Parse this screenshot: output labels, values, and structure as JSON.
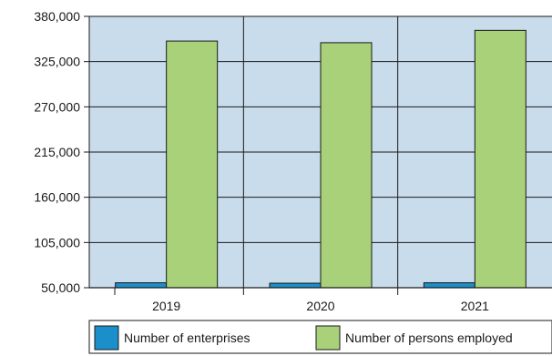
{
  "chart_data": {
    "type": "bar",
    "categories": [
      "2019",
      "2020",
      "2021"
    ],
    "series": [
      {
        "name": "Number of enterprises",
        "values": [
          56000,
          55500,
          56000
        ],
        "color": "#1a8fc9"
      },
      {
        "name": "Number of persons employed",
        "values": [
          350000,
          348000,
          363000
        ],
        "color": "#a8d17a"
      }
    ],
    "ylim": [
      50000,
      380000
    ],
    "yticks": [
      50000,
      105000,
      160000,
      215000,
      270000,
      325000,
      380000
    ],
    "ytick_labels": [
      "50,000",
      "105,000",
      "160,000",
      "215,000",
      "270,000",
      "325,000",
      "380,000"
    ],
    "grid": true,
    "plot_background": "#c9dcec",
    "legend_position": "bottom",
    "title": "",
    "xlabel": "",
    "ylabel": ""
  }
}
